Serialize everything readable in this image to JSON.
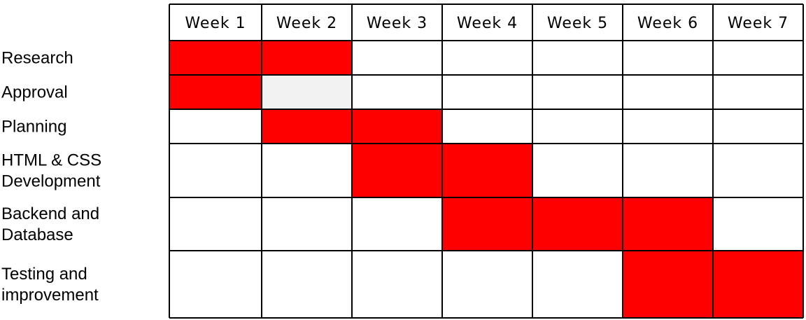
{
  "chart_data": {
    "type": "gantt",
    "title": "",
    "columns": [
      "Week 1",
      "Week 2",
      "Week 3",
      "Week 4",
      "Week 5",
      "Week 6",
      "Week 7"
    ],
    "tasks": [
      {
        "label": [
          "Research"
        ],
        "start_week": 1,
        "end_week": 2
      },
      {
        "label": [
          "Approval"
        ],
        "start_week": 1,
        "end_week": 1,
        "pending_weeks": [
          2
        ]
      },
      {
        "label": [
          "Planning"
        ],
        "start_week": 2,
        "end_week": 3
      },
      {
        "label": [
          "HTML & CSS",
          "Development"
        ],
        "start_week": 3,
        "end_week": 4
      },
      {
        "label": [
          "Backend and",
          "Database"
        ],
        "start_week": 4,
        "end_week": 6
      },
      {
        "label": [
          "Testing and",
          "improvement"
        ],
        "start_week": 6,
        "end_week": 7
      }
    ],
    "colors": {
      "bar": "#ff0000",
      "pending": "#f2f2f2",
      "grid": "#000000",
      "cell": "#ffffff"
    }
  }
}
